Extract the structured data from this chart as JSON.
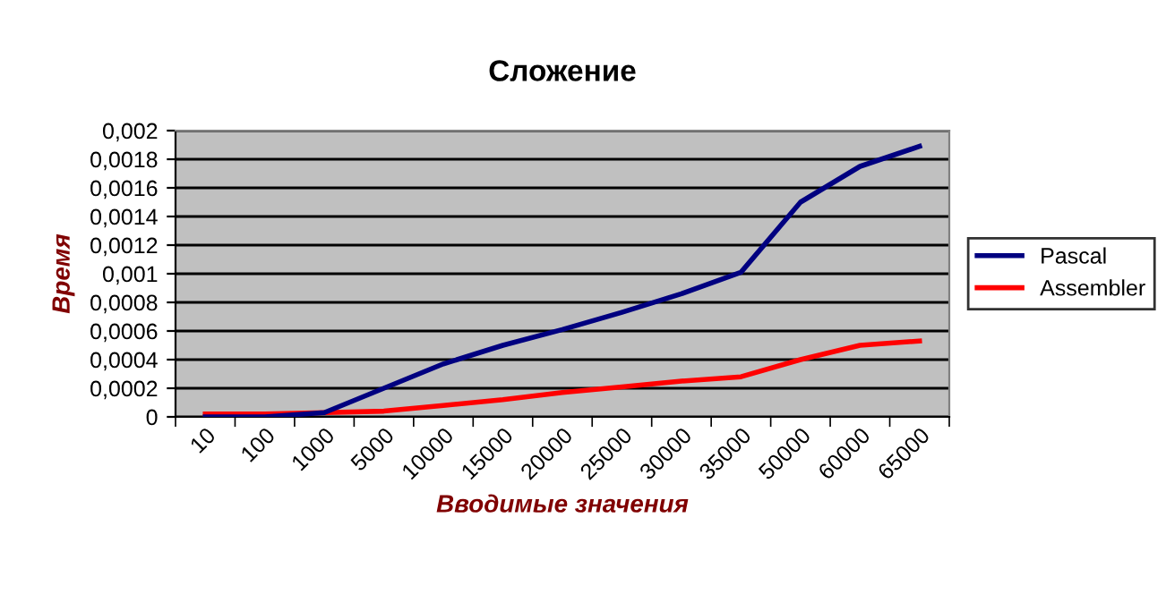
{
  "chart_data": {
    "type": "line",
    "title": "Сложение",
    "xlabel": "Вводимые значения",
    "ylabel": "Время",
    "categories": [
      "10",
      "100",
      "1000",
      "5000",
      "10000",
      "15000",
      "20000",
      "25000",
      "30000",
      "35000",
      "50000",
      "60000",
      "65000"
    ],
    "series": [
      {
        "name": "Pascal",
        "color": "#000080",
        "values": [
          0,
          0,
          3e-05,
          0.0002,
          0.00037,
          0.0005,
          0.00061,
          0.00073,
          0.00086,
          0.00101,
          0.0015,
          0.00175,
          0.00189
        ]
      },
      {
        "name": "Assembler",
        "color": "#ff0000",
        "values": [
          2e-05,
          2e-05,
          3e-05,
          4e-05,
          8e-05,
          0.00012,
          0.00017,
          0.00021,
          0.00025,
          0.00028,
          0.0004,
          0.0005,
          0.00053
        ]
      }
    ],
    "ylim": [
      0,
      0.002
    ],
    "yticks": [
      {
        "value": 0,
        "label": "0"
      },
      {
        "value": 0.0002,
        "label": "0,0002"
      },
      {
        "value": 0.0004,
        "label": "0,0004"
      },
      {
        "value": 0.0006,
        "label": "0,0006"
      },
      {
        "value": 0.0008,
        "label": "0,0008"
      },
      {
        "value": 0.001,
        "label": "0,001"
      },
      {
        "value": 0.0012,
        "label": "0,0012"
      },
      {
        "value": 0.0014,
        "label": "0,0014"
      },
      {
        "value": 0.0016,
        "label": "0,0016"
      },
      {
        "value": 0.0018,
        "label": "0,0018"
      },
      {
        "value": 0.002,
        "label": "0,002"
      }
    ],
    "grid": "y",
    "legend": "right",
    "marker": "none",
    "line_style": "solid"
  }
}
